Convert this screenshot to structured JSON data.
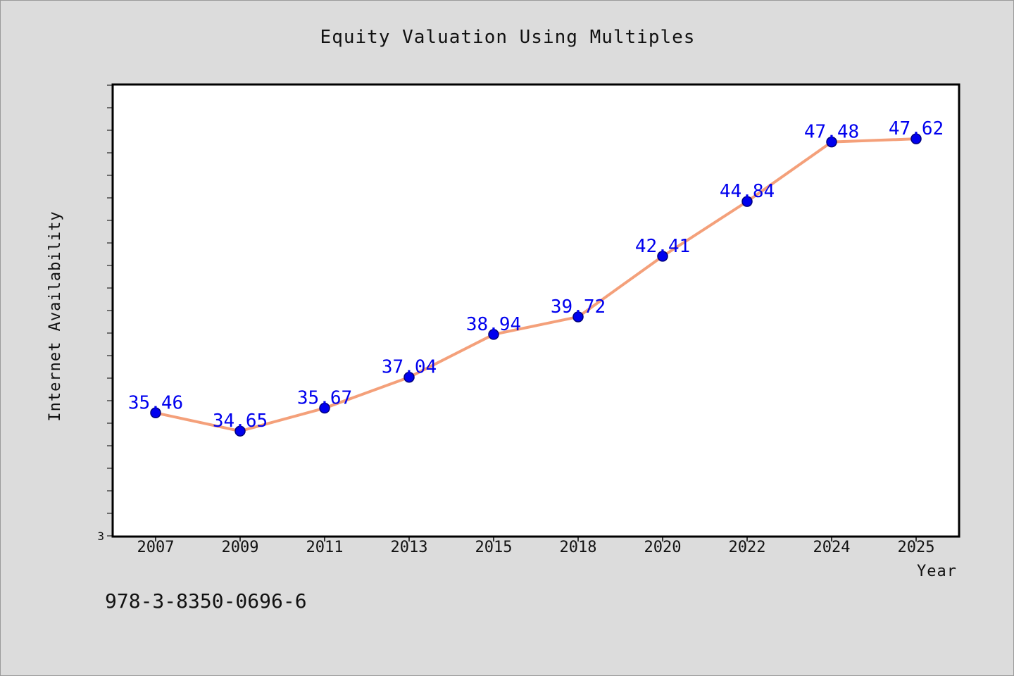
{
  "chart_data": {
    "type": "line",
    "title": "Equity Valuation Using Multiples",
    "xlabel": "Year",
    "ylabel": "Internet Availability",
    "x": [
      "2007",
      "2009",
      "2011",
      "2013",
      "2015",
      "2018",
      "2020",
      "2022",
      "2024",
      "2025"
    ],
    "series": [
      {
        "values": [
          35.46,
          34.65,
          35.67,
          37.04,
          38.94,
          39.72,
          42.41,
          44.84,
          47.48,
          47.62
        ]
      }
    ],
    "ylim": [
      30,
      50
    ],
    "y_tick_labels": [
      "3"
    ],
    "grid": false,
    "legend": "none",
    "colors": {
      "line": "#f4a07a",
      "marker": "#0000ee",
      "marker_edge": "#00007a",
      "data_label": "#0000ee",
      "plot_bg": "#ffffff",
      "page_bg": "#dcdcdc"
    }
  },
  "footnote": "978-3-8350-0696-6"
}
